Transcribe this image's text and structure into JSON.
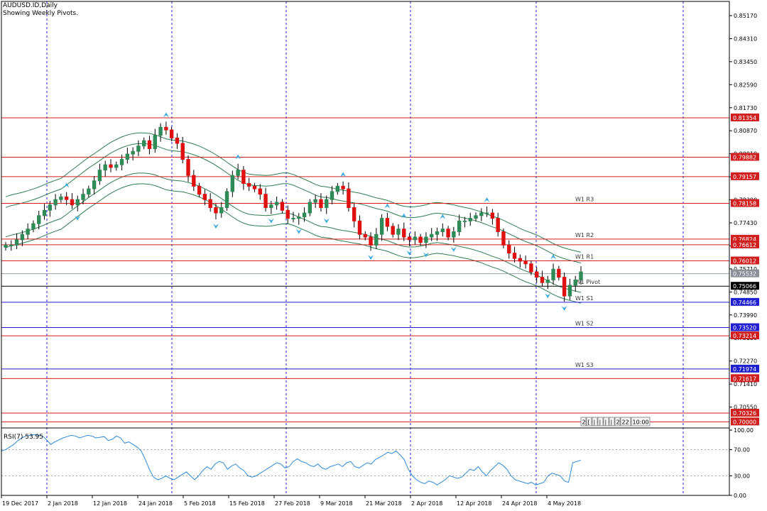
{
  "header": {
    "symbol_line": "AUDUSD.ID,Daily",
    "subtitle": "Showing Weekly Pivots."
  },
  "rsi_label": "RSI(7) 53.95",
  "mini_toolbar": [
    "2",
    "[",
    "|",
    "|",
    "|",
    "|",
    "2",
    "22",
    "10:00"
  ],
  "colors": {
    "bull": "#2e8b57",
    "bear": "#e01010",
    "band": "#2e7d4f",
    "pivot_red": "#d11f1f",
    "pivot_blue": "#1f1fd1",
    "pivot_black": "#000000",
    "arrow": "#35a8e0",
    "rsi_line": "#2b8ad6",
    "axis": "#000000",
    "grid_dash": "#1f1fd1"
  },
  "chart_data": [
    {
      "type": "candlestick",
      "title": "AUDUSD.ID,Daily",
      "subtitle": "Showing Weekly Pivots.",
      "x_labels": [
        "19 Dec 2017",
        "2 Jan 2018",
        "12 Jan 2018",
        "24 Jan 2018",
        "5 Feb 2018",
        "15 Feb 2018",
        "27 Feb 2018",
        "9 Mar 2018",
        "21 Mar 2018",
        "2 Apr 2018",
        "12 Apr 2018",
        "24 Apr 2018",
        "4 May 2018"
      ],
      "y_ticks": [
        "0.85170",
        "0.84310",
        "0.83450",
        "0.82590",
        "0.81730",
        "0.80870",
        "0.80010",
        "0.79150",
        "0.78290",
        "0.77430",
        "0.76570",
        "0.75710",
        "0.74850",
        "0.73990",
        "0.73130",
        "0.72270",
        "0.71410",
        "0.70550"
      ],
      "ylim": [
        0.6985,
        0.857
      ],
      "price_labels": [
        {
          "text": "0.81354",
          "value": 0.81354,
          "color": "red"
        },
        {
          "text": "0.79882",
          "value": 0.79882,
          "color": "red"
        },
        {
          "text": "0.79157",
          "value": 0.79157,
          "color": "red"
        },
        {
          "text": "0.78158",
          "value": 0.78158,
          "color": "red"
        },
        {
          "text": "0.76824",
          "value": 0.76824,
          "color": "red"
        },
        {
          "text": "0.76612",
          "value": 0.76612,
          "color": "red"
        },
        {
          "text": "0.76012",
          "value": 0.76012,
          "color": "red"
        },
        {
          "text": "0.75532",
          "value": 0.75532,
          "color": "gray"
        },
        {
          "text": "0.75066",
          "value": 0.75066,
          "color": "black"
        },
        {
          "text": "0.74466",
          "value": 0.74466,
          "color": "blue"
        },
        {
          "text": "0.73520",
          "value": 0.7352,
          "color": "blue"
        },
        {
          "text": "0.73214",
          "value": 0.73214,
          "color": "red"
        },
        {
          "text": "0.71974",
          "value": 0.71974,
          "color": "blue"
        },
        {
          "text": "0.71617",
          "value": 0.71617,
          "color": "red"
        },
        {
          "text": "0.70326",
          "value": 0.70326,
          "color": "red"
        },
        {
          "text": "0.70000",
          "value": 0.7,
          "color": "red"
        }
      ],
      "pivot_labels": [
        {
          "text": "W1 R3",
          "value": 0.78158
        },
        {
          "text": "W1 R2",
          "value": 0.76824
        },
        {
          "text": "W1 R1",
          "value": 0.76012
        },
        {
          "text": "W1 Pivot",
          "value": 0.75066
        },
        {
          "text": "W1 S1",
          "value": 0.74466
        },
        {
          "text": "W1 S2",
          "value": 0.7352
        },
        {
          "text": "W1 S3",
          "value": 0.71974
        }
      ],
      "closes": [
        0.766,
        0.766,
        0.768,
        0.77,
        0.772,
        0.774,
        0.777,
        0.779,
        0.781,
        0.783,
        0.784,
        0.783,
        0.781,
        0.783,
        0.785,
        0.787,
        0.79,
        0.794,
        0.796,
        0.795,
        0.796,
        0.798,
        0.8,
        0.801,
        0.803,
        0.805,
        0.802,
        0.807,
        0.81,
        0.809,
        0.806,
        0.804,
        0.798,
        0.792,
        0.788,
        0.785,
        0.783,
        0.78,
        0.778,
        0.78,
        0.786,
        0.792,
        0.794,
        0.789,
        0.788,
        0.787,
        0.785,
        0.78,
        0.781,
        0.782,
        0.779,
        0.776,
        0.776,
        0.7765,
        0.778,
        0.782,
        0.783,
        0.78,
        0.783,
        0.786,
        0.788,
        0.787,
        0.78,
        0.775,
        0.77,
        0.769,
        0.766,
        0.77,
        0.776,
        0.773,
        0.77,
        0.772,
        0.769,
        0.768,
        0.769,
        0.767,
        0.769,
        0.77,
        0.771,
        0.772,
        0.769,
        0.771,
        0.775,
        0.775,
        0.776,
        0.777,
        0.778,
        0.778,
        0.776,
        0.771,
        0.766,
        0.763,
        0.761,
        0.76,
        0.759,
        0.756,
        0.754,
        0.752,
        0.753,
        0.757,
        0.754,
        0.747,
        0.751,
        0.753,
        0.756
      ]
    },
    {
      "type": "line",
      "title": "RSI(7) 53.95",
      "y_ticks": [
        "100.00",
        "70.00",
        "30.00",
        "0.00"
      ],
      "ylim": [
        0,
        100
      ],
      "levels": [
        70,
        30
      ],
      "values": [
        68,
        70,
        74,
        78,
        84,
        88,
        91,
        92,
        93,
        92,
        91,
        85,
        78,
        82,
        85,
        88,
        90,
        92,
        91,
        88,
        90,
        92,
        91,
        88,
        89,
        90,
        84,
        86,
        91,
        88,
        80,
        82,
        78,
        74,
        68,
        55,
        40,
        28,
        24,
        26,
        30,
        26,
        24,
        28,
        32,
        36,
        30,
        24,
        30,
        38,
        44,
        40,
        48,
        52,
        50,
        40,
        45,
        48,
        42,
        38,
        30,
        28,
        30,
        34,
        38,
        42,
        46,
        50,
        48,
        42,
        44,
        52,
        56,
        52,
        50,
        46,
        44,
        48,
        42,
        40,
        44,
        46,
        48,
        44,
        50,
        52,
        44,
        42,
        46,
        50,
        48,
        55,
        58,
        62,
        66,
        64,
        68,
        62,
        55,
        40,
        30,
        24,
        20,
        18,
        22,
        20,
        16,
        20,
        24,
        30,
        28,
        26,
        28,
        34,
        40,
        38,
        44,
        36,
        30,
        38,
        44,
        50,
        46,
        40,
        30,
        24,
        22,
        20,
        18,
        20,
        16,
        18,
        20,
        30,
        34,
        32,
        30,
        22,
        20,
        50,
        52,
        54
      ]
    }
  ]
}
